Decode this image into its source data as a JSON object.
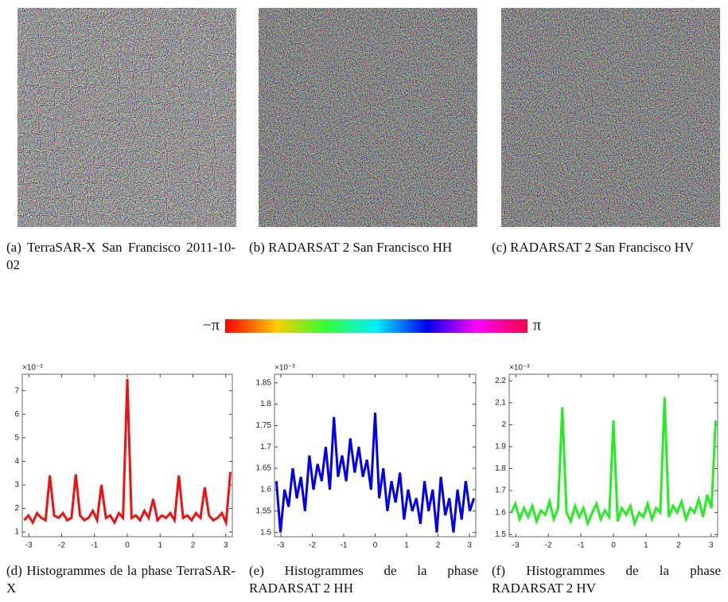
{
  "images": [
    {
      "caption": "(a) TerraSAR-X San Francisco 2011-10-02"
    },
    {
      "caption": "(b) RADARSAT 2 San Francisco HH"
    },
    {
      "caption": "(c) RADARSAT 2 San Francisco HV"
    }
  ],
  "colorbar": {
    "min_label": "−π",
    "max_label": "π"
  },
  "chart_data": [
    {
      "type": "line",
      "caption": "(d) Histogrammes de la phase TerraSAR-X",
      "multiplier": "×10⁻³",
      "x": [
        -3.14,
        -3.01,
        -2.88,
        -2.75,
        -2.62,
        -2.49,
        -2.36,
        -2.23,
        -2.09,
        -1.96,
        -1.83,
        -1.7,
        -1.57,
        -1.44,
        -1.31,
        -1.18,
        -1.05,
        -0.92,
        -0.79,
        -0.65,
        -0.52,
        -0.39,
        -0.26,
        -0.13,
        0,
        0.13,
        0.26,
        0.39,
        0.52,
        0.65,
        0.79,
        0.92,
        1.05,
        1.18,
        1.31,
        1.44,
        1.57,
        1.7,
        1.83,
        1.96,
        2.09,
        2.23,
        2.36,
        2.49,
        2.62,
        2.75,
        2.88,
        3.01,
        3.14
      ],
      "values": [
        1.5,
        1.7,
        1.4,
        1.8,
        1.6,
        1.5,
        3.4,
        1.7,
        1.6,
        1.8,
        1.5,
        1.6,
        3.45,
        1.7,
        1.5,
        1.6,
        1.9,
        1.5,
        3.0,
        1.6,
        1.7,
        1.4,
        1.8,
        1.6,
        7.5,
        1.6,
        1.7,
        1.5,
        1.9,
        1.6,
        2.4,
        1.5,
        1.7,
        1.6,
        1.8,
        1.5,
        3.4,
        1.6,
        1.7,
        1.5,
        1.8,
        1.6,
        2.9,
        1.7,
        1.5,
        1.6,
        1.8,
        1.4,
        3.55
      ],
      "color": "#ee1111",
      "xlim": [
        -3.2,
        3.2
      ],
      "ylim": [
        0.8,
        7.7
      ],
      "xticks": [
        -3,
        -2,
        -1,
        0,
        1,
        2,
        3
      ],
      "yticks": [
        1,
        2,
        3,
        4,
        5,
        6,
        7
      ]
    },
    {
      "type": "line",
      "caption": "(e) Histogrammes de la phase RADARSAT 2 HH",
      "multiplier": "×10⁻³",
      "x": [
        -3.14,
        -3.01,
        -2.88,
        -2.75,
        -2.62,
        -2.49,
        -2.36,
        -2.23,
        -2.09,
        -1.96,
        -1.83,
        -1.7,
        -1.57,
        -1.44,
        -1.31,
        -1.18,
        -1.05,
        -0.92,
        -0.79,
        -0.65,
        -0.52,
        -0.39,
        -0.26,
        -0.13,
        0,
        0.13,
        0.26,
        0.39,
        0.52,
        0.65,
        0.79,
        0.92,
        1.05,
        1.18,
        1.31,
        1.44,
        1.57,
        1.7,
        1.83,
        1.96,
        2.09,
        2.23,
        2.36,
        2.49,
        2.62,
        2.75,
        2.88,
        3.01,
        3.14
      ],
      "values": [
        1.62,
        1.5,
        1.6,
        1.56,
        1.65,
        1.58,
        1.63,
        1.55,
        1.68,
        1.6,
        1.66,
        1.62,
        1.7,
        1.6,
        1.77,
        1.63,
        1.68,
        1.62,
        1.72,
        1.64,
        1.7,
        1.63,
        1.67,
        1.6,
        1.78,
        1.58,
        1.65,
        1.55,
        1.62,
        1.57,
        1.64,
        1.53,
        1.6,
        1.55,
        1.58,
        1.52,
        1.62,
        1.55,
        1.6,
        1.5,
        1.63,
        1.54,
        1.58,
        1.5,
        1.6,
        1.53,
        1.62,
        1.55,
        1.58
      ],
      "color": "#0000ee",
      "xlim": [
        -3.2,
        3.2
      ],
      "ylim": [
        1.49,
        1.87
      ],
      "xticks": [
        -3,
        -2,
        -1,
        0,
        1,
        2,
        3
      ],
      "yticks": [
        1.5,
        1.55,
        1.6,
        1.65,
        1.7,
        1.75,
        1.8,
        1.85
      ]
    },
    {
      "type": "line",
      "caption": "(f) Histogrammes de la phase RADARSAT 2 HV",
      "multiplier": "×10⁻³",
      "x": [
        -3.14,
        -3.01,
        -2.88,
        -2.75,
        -2.62,
        -2.49,
        -2.36,
        -2.23,
        -2.09,
        -1.96,
        -1.83,
        -1.7,
        -1.57,
        -1.44,
        -1.31,
        -1.18,
        -1.05,
        -0.92,
        -0.79,
        -0.65,
        -0.52,
        -0.39,
        -0.26,
        -0.13,
        0,
        0.13,
        0.26,
        0.39,
        0.52,
        0.65,
        0.79,
        0.92,
        1.05,
        1.18,
        1.31,
        1.44,
        1.57,
        1.7,
        1.83,
        1.96,
        2.09,
        2.23,
        2.36,
        2.49,
        2.62,
        2.75,
        2.88,
        3.01,
        3.14
      ],
      "values": [
        1.6,
        1.64,
        1.57,
        1.62,
        1.58,
        1.63,
        1.56,
        1.61,
        1.59,
        1.65,
        1.57,
        1.62,
        2.08,
        1.6,
        1.56,
        1.63,
        1.58,
        1.62,
        1.55,
        1.6,
        1.64,
        1.57,
        1.61,
        1.58,
        2.02,
        1.56,
        1.62,
        1.59,
        1.63,
        1.55,
        1.6,
        1.58,
        1.64,
        1.57,
        1.62,
        1.6,
        2.125,
        1.58,
        1.63,
        1.6,
        1.65,
        1.57,
        1.62,
        1.6,
        1.66,
        1.58,
        1.68,
        1.62,
        2.02
      ],
      "color": "#22ee22",
      "xlim": [
        -3.2,
        3.2
      ],
      "ylim": [
        1.49,
        2.23
      ],
      "xticks": [
        -3,
        -2,
        -1,
        0,
        1,
        2,
        3
      ],
      "yticks": [
        1.5,
        1.6,
        1.7,
        1.8,
        1.9,
        2,
        2.1,
        2.2
      ]
    }
  ]
}
